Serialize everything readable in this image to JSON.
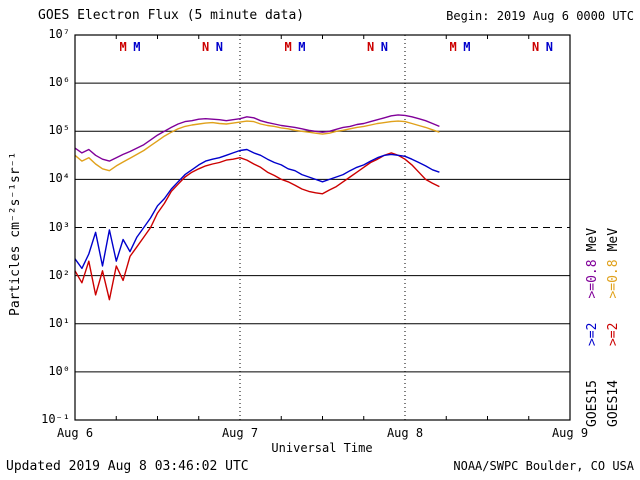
{
  "header": {
    "title": "GOES Electron Flux (5 minute data)",
    "begin_label": "Begin: 2019 Aug 6 0000 UTC"
  },
  "footer": {
    "updated": "Updated 2019 Aug 8 03:46:02 UTC",
    "credit": "NOAA/SWPC Boulder, CO USA"
  },
  "chart_data": {
    "type": "line",
    "title": "GOES Electron Flux (5 minute data)",
    "xlabel": "Universal Time",
    "ylabel": "Particles cm⁻²s⁻¹sr⁻¹",
    "x_unit": "hours since 2019 Aug 6 0000 UTC",
    "xlim": [
      0,
      72
    ],
    "ylog_range": [
      -1,
      7
    ],
    "yscale": "log10",
    "grid": "horizontal solid per decade, 10^3 dashed, day boundaries dotted",
    "ytick_labels": [
      "10⁷",
      "10⁶",
      "10⁵",
      "10⁴",
      "10³",
      "10²",
      "10¹",
      "10⁰",
      "10⁻¹"
    ],
    "xtick_labels": [
      "Aug 6",
      "Aug 7",
      "Aug 8",
      "Aug 9"
    ],
    "xtick_hours": [
      0,
      24,
      48,
      72
    ],
    "hgrid_decades": [
      0,
      1,
      2,
      4,
      5,
      6
    ],
    "dashed_decade": 3,
    "vgrid_hours": [
      24,
      48
    ],
    "hours": [
      0,
      1,
      2,
      3,
      4,
      5,
      6,
      7,
      8,
      9,
      10,
      11,
      12,
      13,
      14,
      15,
      16,
      17,
      18,
      19,
      20,
      21,
      22,
      23,
      24,
      25,
      26,
      27,
      28,
      29,
      30,
      31,
      32,
      33,
      34,
      35,
      36,
      37,
      38,
      39,
      40,
      41,
      42,
      43,
      44,
      45,
      46,
      47,
      48,
      49,
      50,
      51,
      52,
      53
    ],
    "series": [
      {
        "name": "GOES14 >=0.8 MeV",
        "satellite": "GOES14",
        "energy": ">=0.8 MeV",
        "color": "#e0a11b",
        "log10_flux": [
          4.5,
          4.38,
          4.45,
          4.32,
          4.22,
          4.18,
          4.28,
          4.36,
          4.44,
          4.52,
          4.6,
          4.7,
          4.8,
          4.9,
          4.98,
          5.05,
          5.1,
          5.13,
          5.15,
          5.17,
          5.18,
          5.16,
          5.15,
          5.17,
          5.19,
          5.21,
          5.2,
          5.15,
          5.12,
          5.1,
          5.07,
          5.05,
          5.02,
          5.0,
          4.98,
          4.96,
          4.94,
          4.96,
          5.0,
          5.02,
          5.05,
          5.08,
          5.1,
          5.13,
          5.16,
          5.18,
          5.2,
          5.21,
          5.2,
          5.16,
          5.12,
          5.08,
          5.03,
          4.98
        ]
      },
      {
        "name": "GOES15 >=0.8 MeV",
        "satellite": "GOES15",
        "energy": ">=0.8 MeV",
        "color": "#800099",
        "log10_flux": [
          4.65,
          4.55,
          4.62,
          4.5,
          4.42,
          4.38,
          4.45,
          4.52,
          4.58,
          4.65,
          4.72,
          4.82,
          4.92,
          5.0,
          5.08,
          5.15,
          5.2,
          5.22,
          5.25,
          5.26,
          5.25,
          5.24,
          5.22,
          5.24,
          5.26,
          5.3,
          5.28,
          5.22,
          5.18,
          5.15,
          5.12,
          5.1,
          5.08,
          5.05,
          5.02,
          5.0,
          4.98,
          5.0,
          5.04,
          5.08,
          5.1,
          5.14,
          5.16,
          5.2,
          5.24,
          5.28,
          5.32,
          5.34,
          5.33,
          5.3,
          5.26,
          5.22,
          5.16,
          5.1
        ]
      },
      {
        "name": "GOES14 >=2 MeV",
        "satellite": "GOES14",
        "energy": ">=2 MeV",
        "color": "#cc0000",
        "log10_flux": [
          2.1,
          1.85,
          2.3,
          1.6,
          2.1,
          1.5,
          2.2,
          1.9,
          2.4,
          2.6,
          2.8,
          3.0,
          3.3,
          3.5,
          3.75,
          3.9,
          4.05,
          4.15,
          4.22,
          4.28,
          4.32,
          4.35,
          4.4,
          4.42,
          4.45,
          4.4,
          4.32,
          4.25,
          4.15,
          4.08,
          4.0,
          3.95,
          3.88,
          3.8,
          3.75,
          3.72,
          3.7,
          3.78,
          3.85,
          3.95,
          4.05,
          4.15,
          4.25,
          4.35,
          4.42,
          4.5,
          4.55,
          4.5,
          4.42,
          4.3,
          4.15,
          4.0,
          3.92,
          3.85
        ]
      },
      {
        "name": "GOES15 >=2 MeV",
        "satellite": "GOES15",
        "energy": ">=2 MeV",
        "color": "#0000cc",
        "log10_flux": [
          2.35,
          2.15,
          2.45,
          2.9,
          2.2,
          2.95,
          2.3,
          2.75,
          2.5,
          2.8,
          3.0,
          3.2,
          3.45,
          3.6,
          3.8,
          3.95,
          4.1,
          4.2,
          4.3,
          4.38,
          4.42,
          4.45,
          4.5,
          4.55,
          4.6,
          4.62,
          4.55,
          4.5,
          4.42,
          4.35,
          4.3,
          4.22,
          4.18,
          4.1,
          4.05,
          4.0,
          3.95,
          4.0,
          4.05,
          4.1,
          4.18,
          4.25,
          4.3,
          4.38,
          4.45,
          4.5,
          4.52,
          4.5,
          4.48,
          4.42,
          4.35,
          4.28,
          4.2,
          4.15
        ]
      }
    ],
    "noon_midnight_markers": [
      {
        "label": "M",
        "hour": 7,
        "color": "#cc0000"
      },
      {
        "label": "M",
        "hour": 9,
        "color": "#0000cc"
      },
      {
        "label": "N",
        "hour": 19,
        "color": "#cc0000"
      },
      {
        "label": "N",
        "hour": 21,
        "color": "#0000cc"
      },
      {
        "label": "M",
        "hour": 31,
        "color": "#cc0000"
      },
      {
        "label": "M",
        "hour": 33,
        "color": "#0000cc"
      },
      {
        "label": "N",
        "hour": 43,
        "color": "#cc0000"
      },
      {
        "label": "N",
        "hour": 45,
        "color": "#0000cc"
      },
      {
        "label": "M",
        "hour": 55,
        "color": "#cc0000"
      },
      {
        "label": "M",
        "hour": 57,
        "color": "#0000cc"
      },
      {
        "label": "N",
        "hour": 67,
        "color": "#cc0000"
      },
      {
        "label": "N",
        "hour": 69,
        "color": "#0000cc"
      }
    ],
    "legend": {
      "position": "right margin, rotated",
      "columns": [
        {
          "satellite": "GOES15",
          "e2_label": ">=2",
          "e2_color": "#0000cc",
          "e08_label": ">=0.8",
          "e08_color": "#800099",
          "unit": "MeV"
        },
        {
          "satellite": "GOES14",
          "e2_label": ">=2",
          "e2_color": "#cc0000",
          "e08_label": ">=0.8",
          "e08_color": "#e0a11b",
          "unit": "MeV"
        }
      ]
    }
  }
}
